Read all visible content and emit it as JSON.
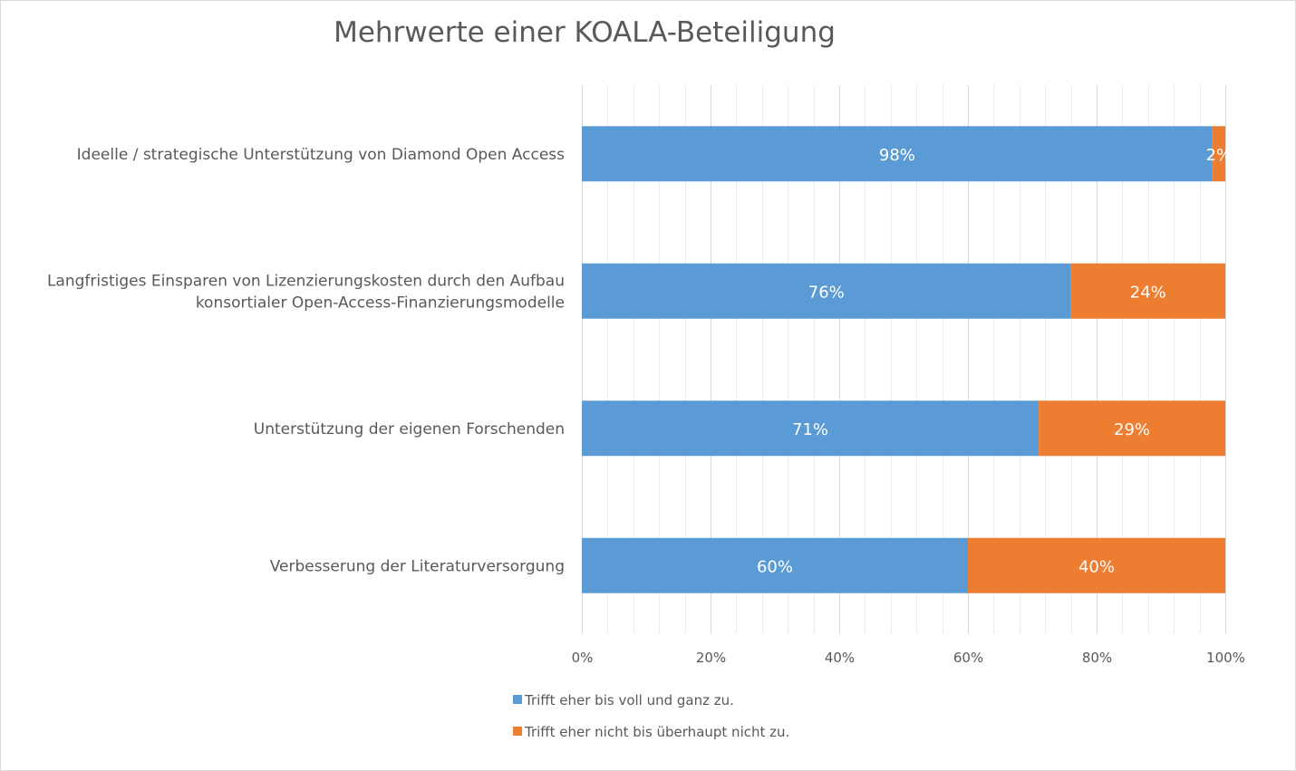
{
  "chart_data": {
    "type": "bar",
    "orientation": "horizontal",
    "stacked": true,
    "title": "Mehrwerte einer KOALA-Beteiligung",
    "categories": [
      [
        "Ideelle / strategische Unterstützung von Diamond Open Access"
      ],
      [
        "Langfristiges Einsparen von Lizenzierungskosten durch den Aufbau",
        "konsortialer Open-Access-Finanzierungsmodelle"
      ],
      [
        "Unterstützung der eigenen Forschenden"
      ],
      [
        "Verbesserung der Literaturversorgung"
      ]
    ],
    "series": [
      {
        "name": "Trifft eher bis voll und ganz zu.",
        "color": "#5b9bd5",
        "values": [
          98,
          76,
          71,
          60
        ],
        "labels": [
          "98%",
          "76%",
          "71%",
          "60%"
        ]
      },
      {
        "name": "Trifft eher nicht bis überhaupt nicht zu.",
        "color": "#ed7d31",
        "values": [
          2,
          24,
          29,
          40
        ],
        "labels": [
          "2%",
          "24%",
          "29%",
          "40%"
        ]
      }
    ],
    "xlim": [
      0,
      100
    ],
    "x_ticks": [
      0,
      20,
      40,
      60,
      80,
      100
    ],
    "x_tick_labels": [
      "0%",
      "20%",
      "40%",
      "60%",
      "80%",
      "100%"
    ],
    "grid": true,
    "legend_position": "bottom"
  }
}
